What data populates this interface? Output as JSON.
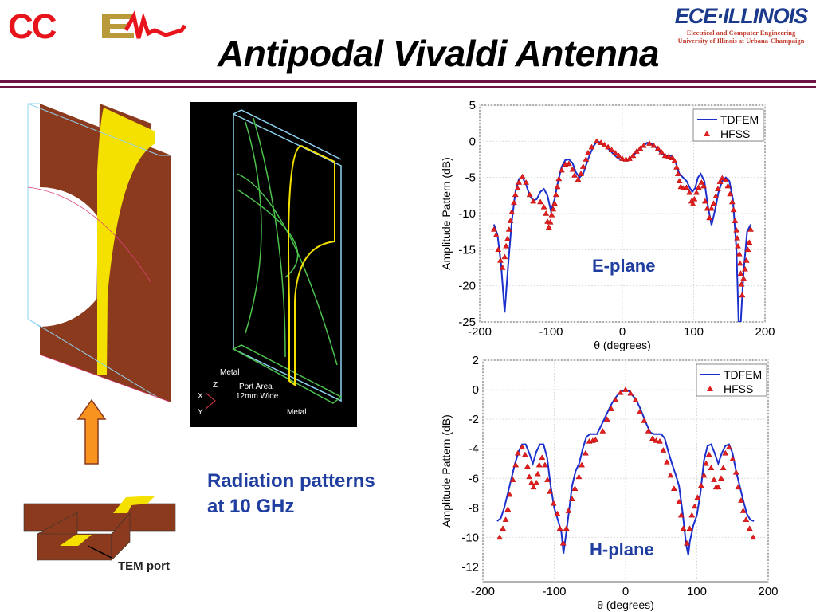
{
  "slide": {
    "title": "Antipodal Vivaldi Antenna",
    "logo_left": "CCEML",
    "logo_right": {
      "name": "ECE·ILLINOIS",
      "line1": "Electrical and Computer Engineering",
      "line2": "University of Illinois at Urbana-Champaign"
    },
    "caption_line1": "Radiation patterns",
    "caption_line2": "at 10 GHz",
    "model_labels": {
      "metal_top": "Metal",
      "port_line1": "Port Area",
      "port_line2": "12mm Wide",
      "metal_bottom": "Metal",
      "axis_x": "X",
      "axis_y": "Y",
      "axis_z": "Z"
    },
    "tem_label": "TEM port",
    "colors": {
      "accent_text": "#1f3ea0",
      "rule": "#6e1546",
      "tdfem": "#1a2fcc",
      "hfss": "#e02020",
      "metal": "#8b3a1e",
      "strip": "#f5e100",
      "arrow": "#f7931e"
    }
  },
  "chart_data": [
    {
      "type": "line",
      "annotation": "E-plane",
      "xlabel": "θ (degrees)",
      "ylabel": "Amplitude Pattern (dB)",
      "xlim": [
        -200,
        200
      ],
      "ylim": [
        -25,
        5
      ],
      "xticks": [
        -200,
        -100,
        0,
        100,
        200
      ],
      "yticks": [
        5,
        0,
        -5,
        -10,
        -15,
        -20,
        -25
      ],
      "grid": true,
      "legend": "top-right",
      "series": [
        {
          "name": "TDFEM",
          "style": "line",
          "color": "#1a2fcc",
          "x": [
            -180,
            -175,
            -170,
            -165,
            -160,
            -155,
            -150,
            -145,
            -140,
            -135,
            -130,
            -125,
            -120,
            -115,
            -110,
            -105,
            -100,
            -95,
            -90,
            -85,
            -80,
            -75,
            -70,
            -65,
            -60,
            -55,
            -50,
            -45,
            -40,
            -35,
            -30,
            -25,
            -20,
            -15,
            -10,
            -5,
            0,
            5,
            10,
            15,
            20,
            25,
            30,
            35,
            40,
            45,
            50,
            55,
            60,
            65,
            70,
            75,
            80,
            85,
            90,
            95,
            98,
            102,
            106,
            110,
            115,
            120,
            125,
            130,
            135,
            140,
            145,
            150,
            155,
            160,
            163,
            166,
            170,
            175,
            180
          ],
          "y": [
            -11.5,
            -13,
            -17,
            -23.7,
            -17,
            -11,
            -7,
            -5.2,
            -5,
            -6,
            -7.5,
            -8.2,
            -8,
            -7,
            -6.6,
            -7.5,
            -9.7,
            -8,
            -5.5,
            -3.5,
            -2.6,
            -2.5,
            -3,
            -4.3,
            -5,
            -4.5,
            -3,
            -1.7,
            -0.6,
            0,
            -0.2,
            -0.6,
            -1,
            -1.5,
            -2,
            -2.4,
            -2.6,
            -2.7,
            -2.4,
            -2,
            -1.5,
            -1,
            -0.6,
            -0.2,
            -0.3,
            -0.6,
            -1.2,
            -1.7,
            -2,
            -2,
            -2,
            -3,
            -4.5,
            -5,
            -5.5,
            -6.5,
            -7,
            -6.5,
            -5,
            -4.5,
            -5.5,
            -9,
            -11.6,
            -9.5,
            -7,
            -5.5,
            -5,
            -5.5,
            -8,
            -15,
            -25,
            -25,
            -18,
            -12.5,
            -11.5
          ]
        },
        {
          "name": "HFSS",
          "style": "marker-triangle",
          "color": "#e02020",
          "x": [
            -180,
            -177,
            -174,
            -171,
            -168,
            -165,
            -163,
            -161,
            -159,
            -157,
            -155,
            -152,
            -150,
            -147,
            -145,
            -140,
            -135,
            -130,
            -125,
            -115,
            -110,
            -107,
            -105,
            -103,
            -101,
            -99,
            -97,
            -95,
            -93,
            -91,
            -89,
            -85,
            -80,
            -75,
            -70,
            -67,
            -62,
            -58,
            -55,
            -51,
            -48,
            -43,
            -36,
            -30,
            -25,
            -20,
            -15,
            -10,
            -5,
            0,
            5,
            10,
            15,
            20,
            25,
            30,
            38,
            44,
            50,
            55,
            60,
            65,
            70,
            73,
            76,
            78,
            80,
            82,
            85,
            90,
            94,
            97,
            99,
            101,
            104,
            107,
            111,
            114,
            116,
            119,
            122,
            125,
            128,
            131,
            134,
            137,
            140,
            145,
            148,
            151,
            154,
            156,
            158,
            160,
            161,
            162,
            164,
            165,
            166,
            167,
            168,
            170,
            172,
            174,
            176,
            178,
            180
          ],
          "y": [
            -12.2,
            -13,
            -15,
            -16.5,
            -17.5,
            -16,
            -14.5,
            -13.5,
            -12.2,
            -11,
            -9.8,
            -8.5,
            -7.4,
            -6.5,
            -5.7,
            -4.9,
            -5.7,
            -7.4,
            -8.3,
            -8.4,
            -9.1,
            -10,
            -11.1,
            -11.9,
            -11.2,
            -10.2,
            -9.4,
            -8.6,
            -7.4,
            -6.3,
            -5.2,
            -4,
            -3.2,
            -3.1,
            -3.9,
            -4.7,
            -5.3,
            -4.5,
            -3.5,
            -2.5,
            -1.6,
            -0.8,
            0,
            -0.2,
            -0.5,
            -0.8,
            -1.2,
            -1.6,
            -2,
            -2.4,
            -2.5,
            -2.4,
            -2,
            -1.4,
            -1,
            -0.6,
            -0.3,
            -0.6,
            -1,
            -1.5,
            -2,
            -2.1,
            -2.3,
            -2.7,
            -3.6,
            -4.5,
            -5.5,
            -6.3,
            -6.5,
            -6.4,
            -7.1,
            -8.3,
            -8.7,
            -8,
            -7.1,
            -6.4,
            -5.7,
            -6.2,
            -8.3,
            -9.3,
            -10.6,
            -9.3,
            -8.6,
            -7.6,
            -6.6,
            -5.6,
            -5.1,
            -5.4,
            -6.2,
            -7.3,
            -8.4,
            -9.5,
            -11,
            -12.3,
            -13.4,
            -14.5,
            -15.6,
            -16.9,
            -18.3,
            -19.8,
            -21.3,
            -19,
            -17.7,
            -16.5,
            -15,
            -14,
            -12.2
          ]
        }
      ]
    },
    {
      "type": "line",
      "annotation": "H-plane",
      "xlabel": "θ (degrees)",
      "ylabel": "Amplitude Pattern (dB)",
      "xlim": [
        -200,
        200
      ],
      "ylim": [
        -13,
        2
      ],
      "xticks": [
        -200,
        -100,
        0,
        100,
        200
      ],
      "yticks": [
        2,
        0,
        -2,
        -4,
        -6,
        -8,
        -10,
        -12
      ],
      "grid": true,
      "legend": "top-right",
      "series": [
        {
          "name": "TDFEM",
          "style": "line",
          "color": "#1a2fcc",
          "x": [
            -180,
            -175,
            -170,
            -165,
            -160,
            -155,
            -150,
            -145,
            -140,
            -135,
            -130,
            -125,
            -120,
            -115,
            -110,
            -105,
            -100,
            -95,
            -90,
            -87,
            -84,
            -80,
            -75,
            -70,
            -65,
            -60,
            -55,
            -50,
            -45,
            -40,
            -35,
            -30,
            -25,
            -20,
            -15,
            -10,
            -5,
            0,
            5,
            10,
            15,
            20,
            25,
            30,
            35,
            40,
            45,
            50,
            55,
            60,
            65,
            70,
            75,
            80,
            85,
            88,
            90,
            95,
            100,
            105,
            110,
            115,
            120,
            125,
            130,
            135,
            140,
            145,
            150,
            155,
            160,
            165,
            170,
            175,
            180
          ],
          "y": [
            -8.9,
            -8.7,
            -8,
            -7,
            -6,
            -5,
            -4.2,
            -3.7,
            -3.7,
            -4.3,
            -5,
            -4.2,
            -3.7,
            -3.7,
            -4.6,
            -6.5,
            -8,
            -8.8,
            -9.6,
            -11.1,
            -10,
            -8.5,
            -6.5,
            -5.5,
            -5,
            -4,
            -3.2,
            -3,
            -3,
            -3,
            -2.5,
            -2,
            -1.5,
            -1,
            -0.6,
            -0.3,
            -0.1,
            0,
            -0.1,
            -0.4,
            -0.7,
            -1.2,
            -1.8,
            -2.4,
            -2.9,
            -3,
            -3,
            -3,
            -3.3,
            -4.2,
            -5,
            -5.7,
            -6.5,
            -8.3,
            -10.5,
            -11.2,
            -10.3,
            -9.2,
            -8.5,
            -7,
            -4.8,
            -3.8,
            -3.7,
            -4.3,
            -5,
            -4.3,
            -3.8,
            -3.7,
            -4.3,
            -5.5,
            -6.5,
            -7.5,
            -8.4,
            -8.8,
            -8.9
          ]
        },
        {
          "name": "HFSS",
          "style": "marker-triangle",
          "color": "#e02020",
          "x": [
            -176.5,
            -172,
            -168,
            -165,
            -162.5,
            -158,
            -154,
            -151,
            -145,
            -141,
            -137.5,
            -135,
            -132,
            -129,
            -125,
            -123,
            -121,
            -117,
            -113,
            -109.5,
            -106,
            -101,
            -95.6,
            -92,
            -87.5,
            -83,
            -80,
            -75,
            -71,
            -65.4,
            -61.4,
            -56,
            -50.7,
            -46,
            -42,
            -32,
            -26,
            -20,
            -14,
            -7,
            0,
            7,
            14,
            20,
            26,
            32,
            38,
            43,
            48,
            53,
            58,
            63,
            68,
            75,
            78,
            81,
            86,
            90,
            93,
            97,
            101,
            106,
            110,
            113,
            117,
            120,
            124,
            127,
            130,
            134,
            137,
            140,
            145,
            150,
            155,
            158,
            162,
            165,
            169,
            174,
            179
          ],
          "y": [
            -10,
            -9.4,
            -8.8,
            -8.1,
            -7.1,
            -6.1,
            -5.1,
            -4.3,
            -3.9,
            -4.4,
            -5.2,
            -5.9,
            -6.3,
            -6.6,
            -6.3,
            -5.7,
            -5.1,
            -4.6,
            -5.1,
            -6.1,
            -6.9,
            -7.7,
            -8.4,
            -9.4,
            -10.4,
            -9.4,
            -8.2,
            -7.4,
            -6.7,
            -5.9,
            -5.1,
            -4.3,
            -3.5,
            -3.45,
            -3.4,
            -2.8,
            -2,
            -1.3,
            -0.7,
            -0.2,
            0,
            -0.25,
            -0.7,
            -1.5,
            -2.1,
            -2.8,
            -3.3,
            -3.45,
            -3.5,
            -4.1,
            -4.9,
            -5.8,
            -6.7,
            -7.6,
            -8.5,
            -9.4,
            -10.4,
            -9.4,
            -8.5,
            -7.9,
            -7.3,
            -6.5,
            -5.8,
            -5,
            -4.4,
            -5.3,
            -6.1,
            -6.6,
            -6.6,
            -6,
            -5.3,
            -4.3,
            -3.9,
            -4.7,
            -5.6,
            -6.6,
            -7.5,
            -8.2,
            -8.8,
            -9.4,
            -10
          ]
        }
      ]
    }
  ]
}
